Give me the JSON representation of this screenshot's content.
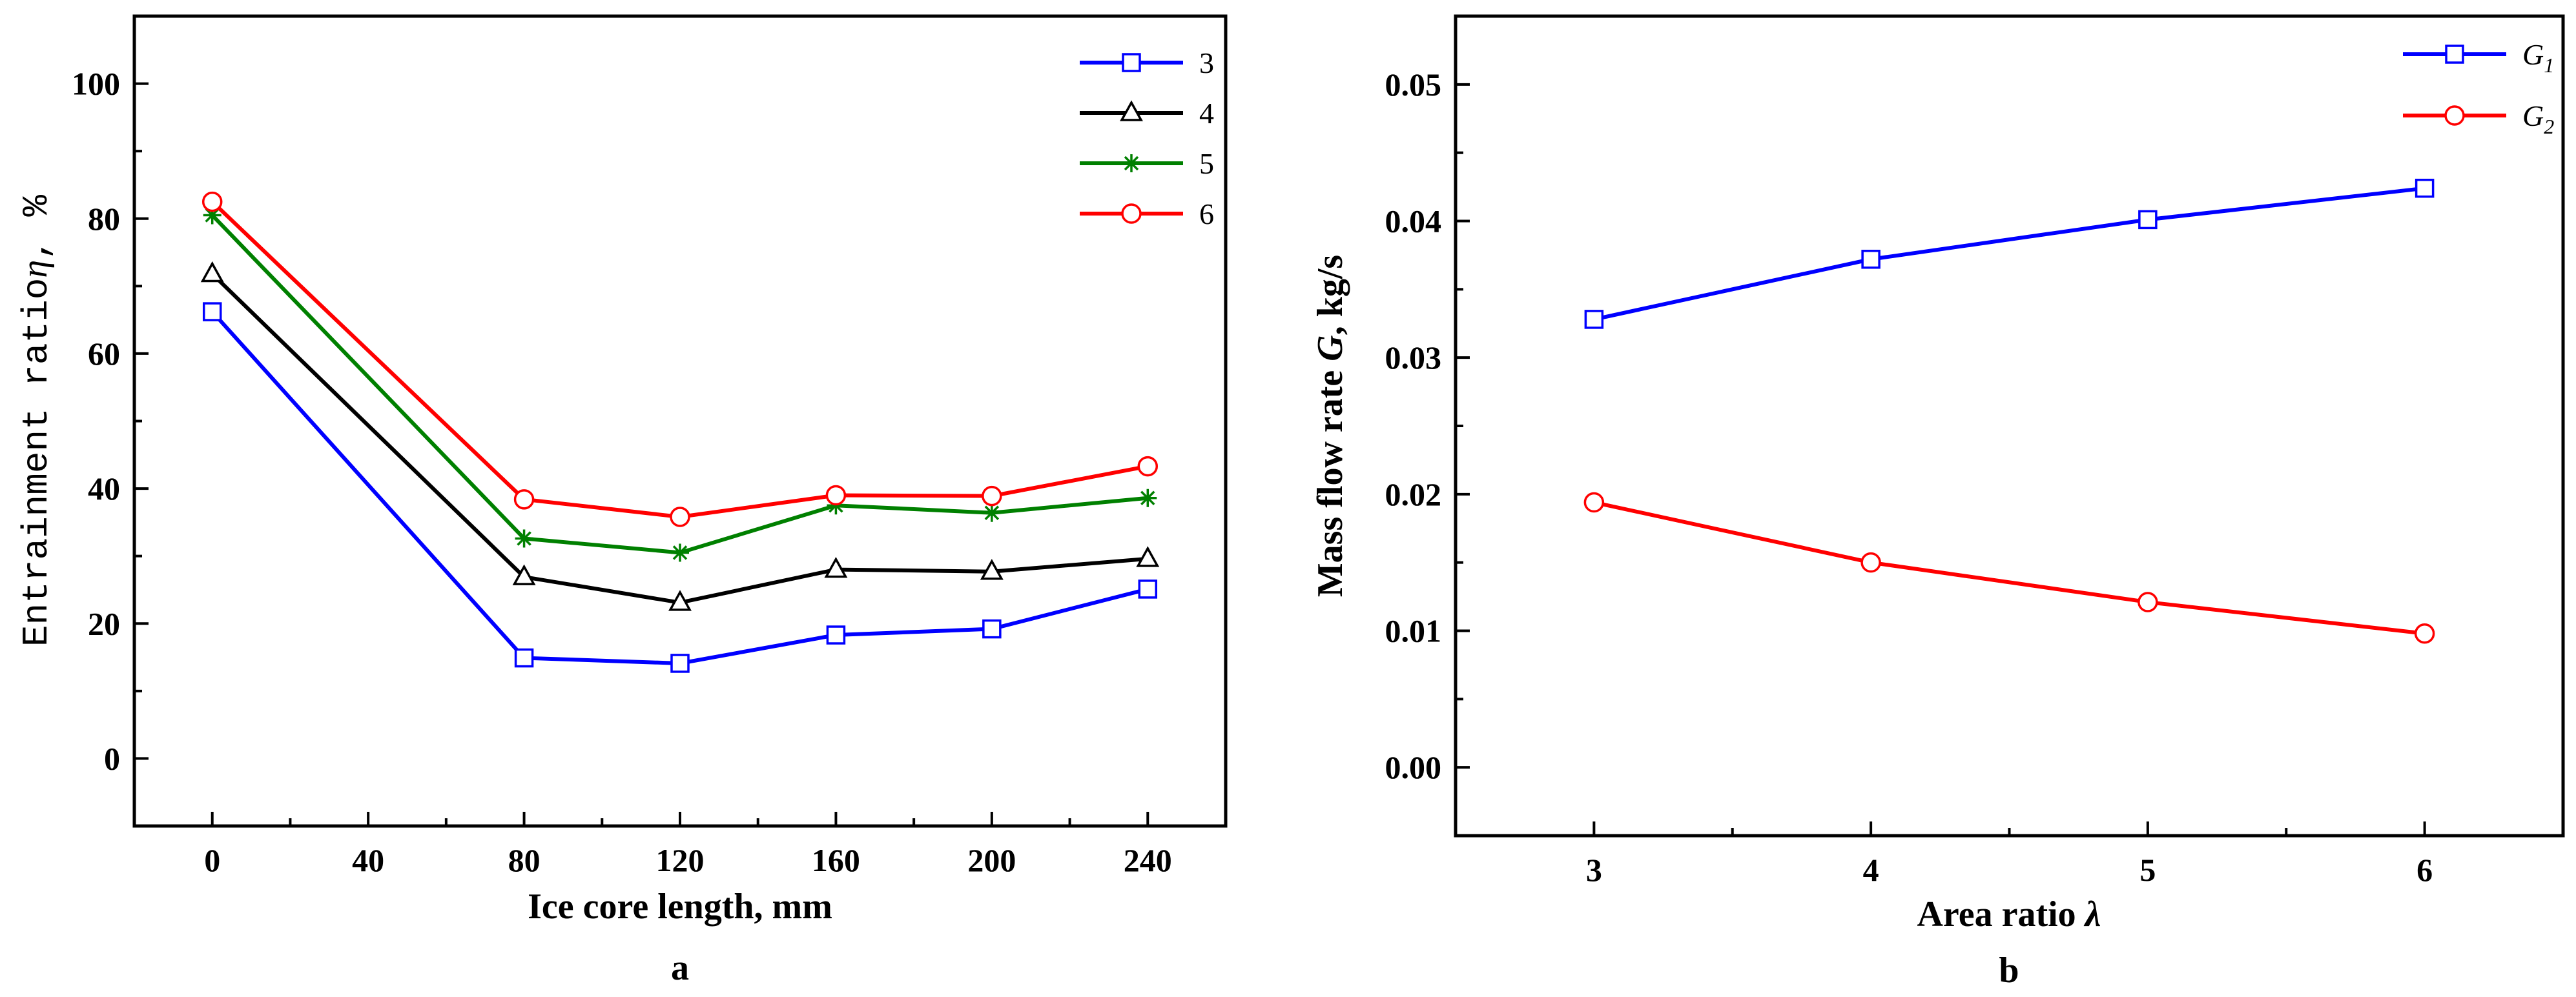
{
  "chart_data": [
    {
      "panel": "a",
      "type": "line",
      "xlabel": "Ice core length, mm",
      "ylabel": {
        "prefix": "Entrainment ratio",
        "symbol": "η",
        "suffix": ", %"
      },
      "xlim": [
        -20,
        260
      ],
      "ylim": [
        -10,
        110
      ],
      "xticks": [
        "0",
        "40",
        "80",
        "120",
        "160",
        "200",
        "240"
      ],
      "xtick_values": [
        0,
        40,
        80,
        120,
        160,
        200,
        240
      ],
      "yticks": [
        "0",
        "20",
        "40",
        "60",
        "80",
        "100"
      ],
      "ytick_values": [
        0,
        20,
        40,
        60,
        80,
        100
      ],
      "x": [
        0,
        80,
        120,
        160,
        200,
        240
      ],
      "legend_position": "top-right",
      "series": [
        {
          "name": "3",
          "color": "#0000ff",
          "marker": "square",
          "values": [
            66.2,
            14.9,
            14.1,
            18.3,
            19.2,
            25.1
          ]
        },
        {
          "name": "4",
          "color": "#000000",
          "marker": "triangle",
          "values": [
            71.8,
            26.9,
            23.1,
            28.0,
            27.7,
            29.6
          ]
        },
        {
          "name": "5",
          "color": "#008000",
          "marker": "star",
          "values": [
            80.5,
            32.6,
            30.5,
            37.5,
            36.4,
            38.6
          ]
        },
        {
          "name": "6",
          "color": "#ff0000",
          "marker": "circle",
          "values": [
            82.5,
            38.4,
            35.8,
            39.0,
            38.9,
            43.3
          ]
        }
      ]
    },
    {
      "panel": "b",
      "type": "line",
      "xlabel": {
        "prefix": "Area ratio",
        "symbol": "λ"
      },
      "ylabel": {
        "prefix": "Mass flow rate",
        "symbol": "G",
        "suffix": ", kg/s"
      },
      "xlim": [
        2.5,
        6.5
      ],
      "ylim": [
        -0.005,
        0.055
      ],
      "xticks": [
        "3",
        "4",
        "5",
        "6"
      ],
      "xtick_values": [
        3,
        4,
        5,
        6
      ],
      "yticks": [
        "0.00",
        "0.01",
        "0.02",
        "0.03",
        "0.04",
        "0.05"
      ],
      "ytick_values": [
        0,
        0.01,
        0.02,
        0.03,
        0.04,
        0.05
      ],
      "x": [
        3,
        4,
        5,
        6
      ],
      "legend_position": "top-right",
      "series": [
        {
          "name": "G",
          "subscript": "1",
          "color": "#0000ff",
          "marker": "square",
          "values": [
            0.0328,
            0.0372,
            0.0401,
            0.0424
          ]
        },
        {
          "name": "G",
          "subscript": "2",
          "color": "#ff0000",
          "marker": "circle",
          "values": [
            0.0194,
            0.015,
            0.0121,
            0.0098
          ]
        }
      ]
    }
  ]
}
